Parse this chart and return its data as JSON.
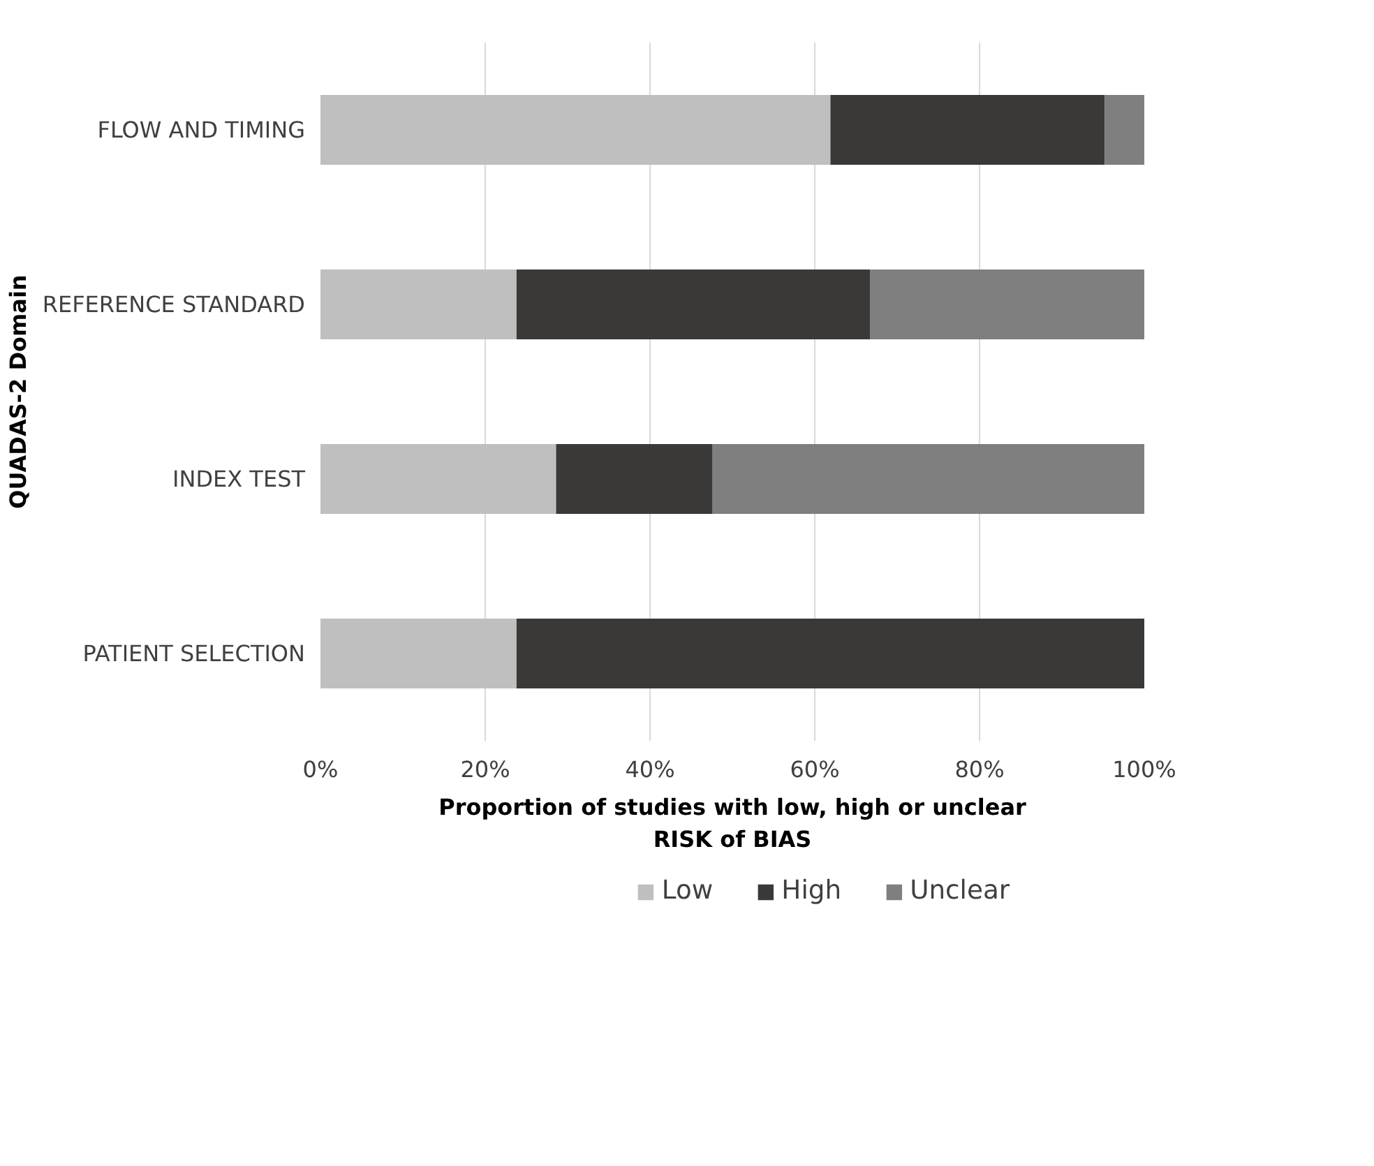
{
  "chart_data": {
    "type": "bar",
    "orientation": "horizontal",
    "stacked": true,
    "xlabel": "Proportion of studies with low, high or unclear RISK of BIAS",
    "ylabel": "QUADAS-2 Domain",
    "categories": [
      "FLOW AND TIMING",
      "REFERENCE STANDARD",
      "INDEX TEST",
      "PATIENT SELECTION"
    ],
    "series": [
      {
        "name": "Low",
        "color": "#bfbfbf",
        "values": [
          61.9,
          23.8,
          28.6,
          23.8
        ]
      },
      {
        "name": "High",
        "color": "#3a3937",
        "values": [
          33.3,
          42.9,
          19.0,
          76.2
        ]
      },
      {
        "name": "Unclear",
        "color": "#7f7f7f",
        "values": [
          4.8,
          33.3,
          52.4,
          0
        ]
      }
    ],
    "xlim": [
      0,
      100
    ],
    "xticks": [
      {
        "value": 0,
        "label": "0%"
      },
      {
        "value": 20,
        "label": "20%"
      },
      {
        "value": 40,
        "label": "40%"
      },
      {
        "value": 60,
        "label": "60%"
      },
      {
        "value": 80,
        "label": "80%"
      },
      {
        "value": 100,
        "label": "100%"
      }
    ],
    "grid": "x",
    "legend": "bottom"
  }
}
